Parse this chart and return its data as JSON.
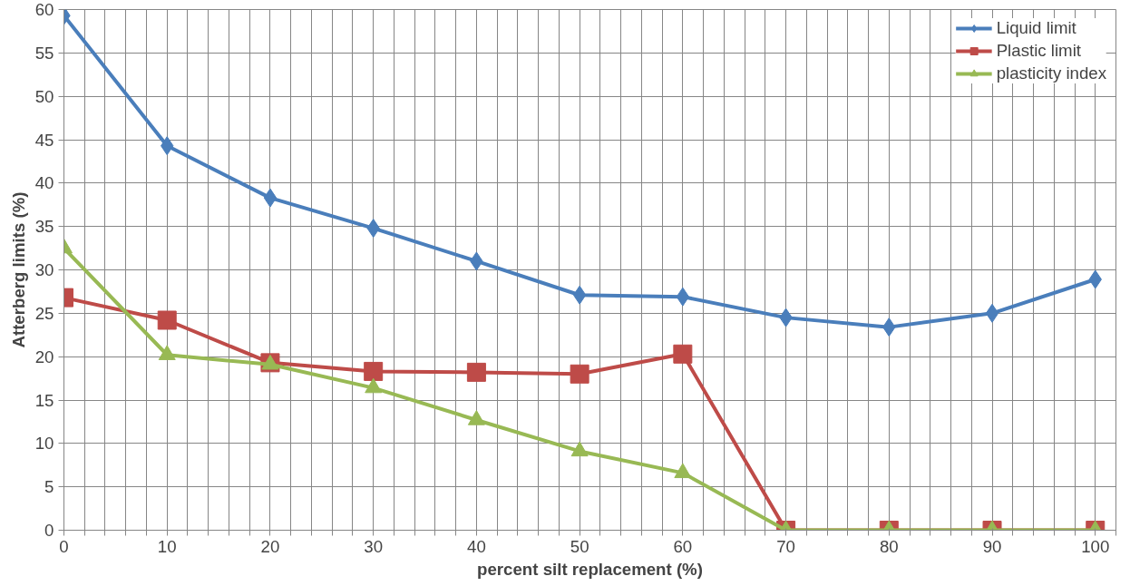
{
  "chart_data": {
    "type": "line",
    "xlabel": "percent silt replacement (%)",
    "ylabel": "Atterberg limits (%)",
    "x": [
      0,
      10,
      20,
      30,
      40,
      50,
      60,
      70,
      80,
      90,
      100
    ],
    "xlim": [
      0,
      102
    ],
    "xticks": [
      0,
      {
        "value": 2,
        "label": null
      },
      {
        "value": 4,
        "label": null
      },
      {
        "value": 6,
        "label": null
      },
      {
        "value": 8,
        "label": null
      },
      10,
      {
        "value": 12,
        "label": null
      },
      {
        "value": 14,
        "label": null
      },
      {
        "value": 16,
        "label": null
      },
      {
        "value": 18,
        "label": null
      },
      20,
      {
        "value": 22,
        "label": null
      },
      {
        "value": 24,
        "label": null
      },
      {
        "value": 26,
        "label": null
      },
      {
        "value": 28,
        "label": null
      },
      30,
      {
        "value": 32,
        "label": null
      },
      {
        "value": 34,
        "label": null
      },
      {
        "value": 36,
        "label": null
      },
      {
        "value": 38,
        "label": null
      },
      40,
      {
        "value": 42,
        "label": null
      },
      {
        "value": 44,
        "label": null
      },
      {
        "value": 46,
        "label": null
      },
      {
        "value": 48,
        "label": null
      },
      50,
      {
        "value": 52,
        "label": null
      },
      {
        "value": 54,
        "label": null
      },
      {
        "value": 56,
        "label": null
      },
      {
        "value": 58,
        "label": null
      },
      60,
      {
        "value": 62,
        "label": null
      },
      {
        "value": 64,
        "label": null
      },
      {
        "value": 66,
        "label": null
      },
      {
        "value": 68,
        "label": null
      },
      70,
      {
        "value": 72,
        "label": null
      },
      {
        "value": 74,
        "label": null
      },
      {
        "value": 76,
        "label": null
      },
      {
        "value": 78,
        "label": null
      },
      80,
      {
        "value": 82,
        "label": null
      },
      {
        "value": 84,
        "label": null
      },
      {
        "value": 86,
        "label": null
      },
      {
        "value": 88,
        "label": null
      },
      90,
      {
        "value": 92,
        "label": null
      },
      {
        "value": 94,
        "label": null
      },
      {
        "value": 96,
        "label": null
      },
      {
        "value": 98,
        "label": null
      },
      100,
      {
        "value": 102,
        "label": null
      }
    ],
    "ylim": [
      0,
      60
    ],
    "yticks": [
      0,
      5,
      10,
      15,
      20,
      25,
      30,
      35,
      40,
      45,
      50,
      55,
      60
    ],
    "grid": true,
    "legend": "top right",
    "line_style": "solid",
    "series": [
      {
        "name": "Liquid limit",
        "color": "#4a7ebb",
        "marker": "diamond",
        "values": [
          59.3,
          44.3,
          38.3,
          34.8,
          31,
          27.1,
          26.9,
          24.5,
          23.4,
          25,
          28.9
        ]
      },
      {
        "name": "Plastic limit",
        "color": "#be4b48",
        "marker": "square",
        "values": [
          26.8,
          24.2,
          19.3,
          18.3,
          18.2,
          18,
          20.3,
          0,
          0,
          0,
          0
        ]
      },
      {
        "name": "plasticity index",
        "color": "#98b954",
        "marker": "triangle",
        "values": [
          32.5,
          20.2,
          19.1,
          16.4,
          12.7,
          9.1,
          6.6,
          0,
          0,
          0,
          0
        ]
      }
    ]
  }
}
